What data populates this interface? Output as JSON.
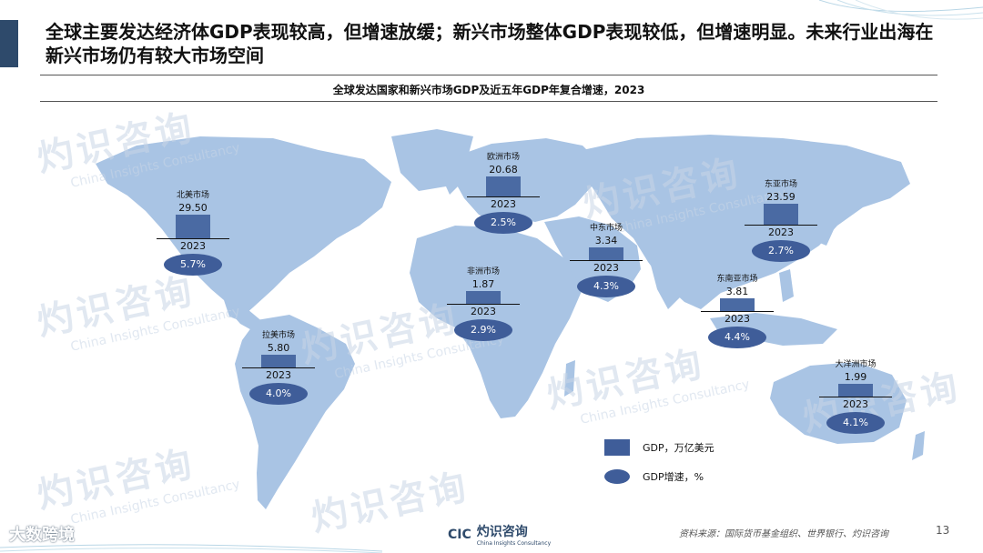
{
  "headline": "全球主要发达经济体GDP表现较高，但增速放缓；新兴市场整体GDP表现较低，但增速明显。未来行业出海在新兴市场仍有较大市场空间",
  "subtitle": "全球发达国家和新兴市场GDP及近五年GDP年复合增速，2023",
  "watermark": {
    "cn": "灼识咨询",
    "en": "China Insights Consultancy",
    "logo": "CIC"
  },
  "regions": [
    {
      "key": "north-america",
      "name": "北美市场",
      "gdp": "29.50",
      "gdp_value": 29.5,
      "year": "2023",
      "growth": "5.7%"
    },
    {
      "key": "europe",
      "name": "欧洲市场",
      "gdp": "20.68",
      "gdp_value": 20.68,
      "year": "2023",
      "growth": "2.5%"
    },
    {
      "key": "east-asia",
      "name": "东亚市场",
      "gdp": "23.59",
      "gdp_value": 23.59,
      "year": "2023",
      "growth": "2.7%"
    },
    {
      "key": "middle-east",
      "name": "中东市场",
      "gdp": "3.34",
      "gdp_value": 3.34,
      "year": "2023",
      "growth": "4.3%"
    },
    {
      "key": "africa",
      "name": "非洲市场",
      "gdp": "1.87",
      "gdp_value": 1.87,
      "year": "2023",
      "growth": "2.9%"
    },
    {
      "key": "southeast-asia",
      "name": "东南亚市场",
      "gdp": "3.81",
      "gdp_value": 3.81,
      "year": "2023",
      "growth": "4.4%"
    },
    {
      "key": "latin-america",
      "name": "拉美市场",
      "gdp": "5.80",
      "gdp_value": 5.8,
      "year": "2023",
      "growth": "4.0%"
    },
    {
      "key": "oceania",
      "name": "大洋洲市场",
      "gdp": "1.99",
      "gdp_value": 1.99,
      "year": "2023",
      "growth": "4.1%"
    }
  ],
  "legend": {
    "gdp": "GDP，万亿美元",
    "growth": "GDP增速，%"
  },
  "footer": {
    "logo_mark": "CIC",
    "logo_text": "灼识咨询",
    "logo_sub": "China Insights Consultancy",
    "source": "资料来源：国际货币基金组织、世界银行、灼识咨询",
    "page": "13",
    "wechat_logo": "大数跨境"
  },
  "colors": {
    "map_land": "#a9c4e4",
    "bar": "#4a6aa3",
    "ellipse": "#3f5d99",
    "accent": "#2e4a6b"
  }
}
